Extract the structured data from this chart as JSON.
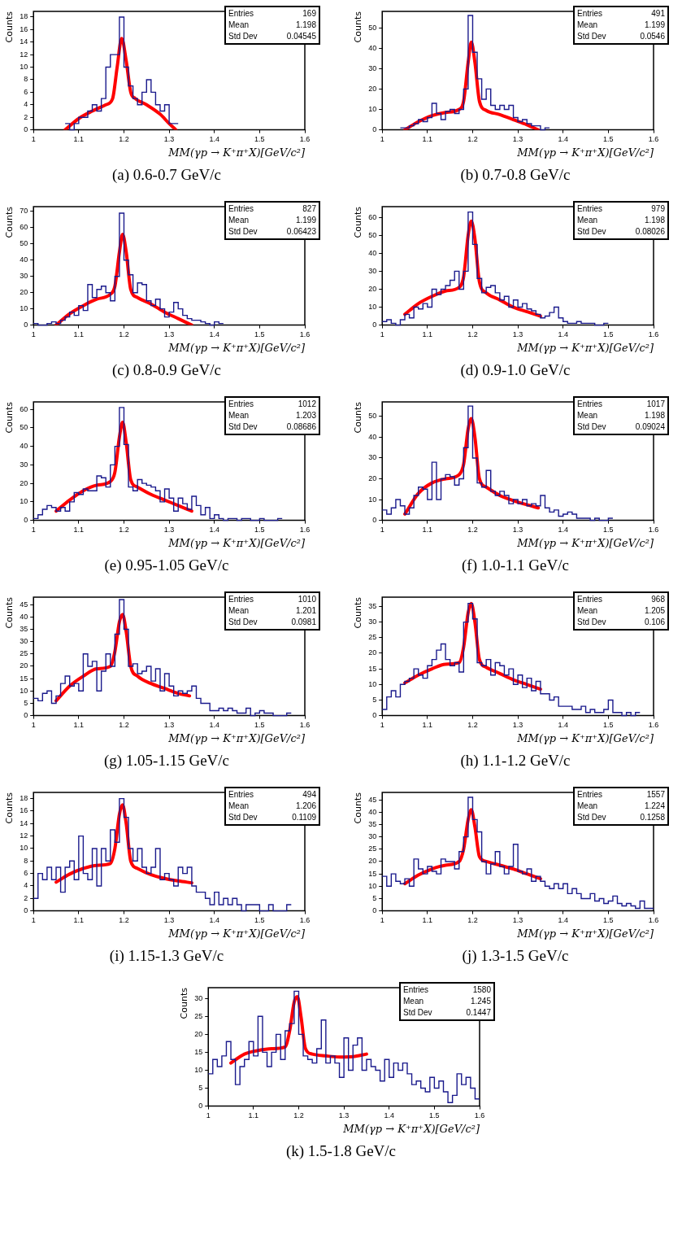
{
  "chart_data": [
    {
      "type": "histogram",
      "title": "(a) 0.6-0.7 GeV/c",
      "xlabel": "MM(γp → K⁺π⁺X)[GeV/c²]",
      "ylabel": "Counts",
      "annotations": [
        "Entries 169",
        "Mean 1.198",
        "Std Dev 0.04545"
      ],
      "xlim": [
        1,
        1.6
      ],
      "xticks": [
        1,
        1.1,
        1.2,
        1.3,
        1.4,
        1.5,
        1.6
      ],
      "ylim": [
        0,
        18.9
      ],
      "yticks": [
        0,
        2,
        4,
        6,
        8,
        10,
        12,
        14,
        16,
        18
      ],
      "color": "#1a1a8c",
      "bins": [
        1.07,
        1.08,
        1.09,
        1.1,
        1.11,
        1.12,
        1.13,
        1.14,
        1.15,
        1.16,
        1.17,
        1.18,
        1.19,
        1.2,
        1.21,
        1.22,
        1.23,
        1.24,
        1.25,
        1.26,
        1.27,
        1.28,
        1.29,
        1.3,
        1.31,
        1.32
      ],
      "values": [
        1,
        0,
        1,
        2,
        2,
        3,
        4,
        3,
        5,
        10,
        12,
        12,
        18,
        10,
        7,
        5,
        4,
        6,
        8,
        6,
        4,
        3,
        4,
        1,
        1
      ],
      "series": [
        {
          "type": "line",
          "color": "#ff0000",
          "x": [
            1.07,
            1.1,
            1.13,
            1.16,
            1.175,
            1.185,
            1.195,
            1.205,
            1.215,
            1.225,
            1.25,
            1.28,
            1.3,
            1.315
          ],
          "values": [
            0,
            1.8,
            3,
            4,
            5,
            10,
            14.6,
            11,
            6,
            5,
            4,
            2.5,
            1,
            0
          ]
        }
      ]
    },
    {
      "type": "histogram",
      "title": "(b) 0.7-0.8 GeV/c",
      "xlabel": "MM(γp → K⁺π⁺X)[GeV/c²]",
      "ylabel": "Counts",
      "annotations": [
        "Entries 491",
        "Mean 1.199",
        "Std Dev 0.0546"
      ],
      "xlim": [
        1,
        1.6
      ],
      "xticks": [
        1,
        1.1,
        1.2,
        1.3,
        1.4,
        1.5,
        1.6
      ],
      "ylim": [
        0,
        58
      ],
      "yticks": [
        0,
        10,
        20,
        30,
        40,
        50
      ],
      "color": "#1a1a8c",
      "bins": [
        1.04,
        1.05,
        1.06,
        1.07,
        1.08,
        1.09,
        1.1,
        1.11,
        1.12,
        1.13,
        1.14,
        1.15,
        1.16,
        1.17,
        1.18,
        1.19,
        1.2,
        1.21,
        1.22,
        1.23,
        1.24,
        1.25,
        1.26,
        1.27,
        1.28,
        1.29,
        1.3,
        1.31,
        1.32,
        1.33,
        1.34,
        1.35,
        1.36,
        1.37
      ],
      "values": [
        1,
        1,
        2,
        3,
        5,
        4,
        6,
        13,
        8,
        5,
        9,
        10,
        8,
        10,
        20,
        56,
        38,
        25,
        15,
        20,
        12,
        10,
        12,
        10,
        12,
        6,
        4,
        5,
        3,
        2,
        2,
        0,
        1
      ],
      "series": [
        {
          "type": "line",
          "color": "#ff0000",
          "x": [
            1.05,
            1.08,
            1.11,
            1.14,
            1.17,
            1.18,
            1.19,
            1.197,
            1.205,
            1.215,
            1.23,
            1.26,
            1.29,
            1.32,
            1.345
          ],
          "values": [
            0,
            4,
            7,
            8.5,
            10,
            14,
            33,
            43,
            33,
            14,
            9.5,
            7.5,
            5,
            2.5,
            0
          ]
        }
      ]
    },
    {
      "type": "histogram",
      "title": "(c) 0.8-0.9 GeV/c",
      "xlabel": "MM(γp → K⁺π⁺X)[GeV/c²]",
      "ylabel": "Counts",
      "annotations": [
        "Entries 827",
        "Mean 1.199",
        "Std Dev 0.06423"
      ],
      "xlim": [
        1,
        1.6
      ],
      "xticks": [
        1,
        1.1,
        1.2,
        1.3,
        1.4,
        1.5,
        1.6
      ],
      "ylim": [
        0,
        73
      ],
      "yticks": [
        0,
        10,
        20,
        30,
        40,
        50,
        60,
        70
      ],
      "color": "#1a1a8c",
      "bins": [
        1,
        1.01,
        1.02,
        1.03,
        1.04,
        1.05,
        1.06,
        1.07,
        1.08,
        1.09,
        1.1,
        1.11,
        1.12,
        1.13,
        1.14,
        1.15,
        1.16,
        1.17,
        1.18,
        1.19,
        1.2,
        1.21,
        1.22,
        1.23,
        1.24,
        1.25,
        1.26,
        1.27,
        1.28,
        1.29,
        1.3,
        1.31,
        1.32,
        1.33,
        1.34,
        1.35,
        1.36,
        1.37,
        1.38,
        1.39,
        1.4,
        1.41,
        1.42
      ],
      "values": [
        1,
        0,
        0,
        1,
        2,
        1,
        3,
        5,
        8,
        6,
        12,
        9,
        25,
        17,
        22,
        24,
        20,
        15,
        30,
        69,
        40,
        31,
        20,
        26,
        25,
        15,
        12,
        16,
        10,
        5,
        8,
        14,
        10,
        6,
        4,
        3,
        3,
        2,
        1,
        0,
        2,
        1
      ],
      "series": [
        {
          "type": "line",
          "color": "#ff0000",
          "x": [
            1.05,
            1.08,
            1.11,
            1.14,
            1.17,
            1.18,
            1.19,
            1.197,
            1.205,
            1.215,
            1.23,
            1.26,
            1.29,
            1.32,
            1.35
          ],
          "values": [
            0,
            7,
            12,
            16,
            19,
            24,
            45,
            56,
            45,
            22,
            17,
            13,
            8,
            4,
            0
          ]
        }
      ]
    },
    {
      "type": "histogram",
      "title": "(d) 0.9-1.0 GeV/c",
      "xlabel": "MM(γp → K⁺π⁺X)[GeV/c²]",
      "ylabel": "Counts",
      "annotations": [
        "Entries 979",
        "Mean 1.198",
        "Std Dev 0.08026"
      ],
      "xlim": [
        1,
        1.6
      ],
      "xticks": [
        1,
        1.1,
        1.2,
        1.3,
        1.4,
        1.5,
        1.6
      ],
      "ylim": [
        0,
        66
      ],
      "yticks": [
        0,
        10,
        20,
        30,
        40,
        50,
        60
      ],
      "color": "#1a1a8c",
      "bins": [
        1,
        1.01,
        1.02,
        1.03,
        1.04,
        1.05,
        1.06,
        1.07,
        1.08,
        1.09,
        1.1,
        1.11,
        1.12,
        1.13,
        1.14,
        1.15,
        1.16,
        1.17,
        1.18,
        1.19,
        1.2,
        1.21,
        1.22,
        1.23,
        1.24,
        1.25,
        1.26,
        1.27,
        1.28,
        1.29,
        1.3,
        1.31,
        1.32,
        1.33,
        1.34,
        1.35,
        1.36,
        1.37,
        1.38,
        1.39,
        1.4,
        1.41,
        1.42,
        1.43,
        1.44,
        1.45,
        1.46,
        1.47,
        1.48,
        1.49,
        1.5
      ],
      "values": [
        2,
        3,
        1,
        0,
        3,
        6,
        4,
        10,
        9,
        12,
        10,
        20,
        17,
        20,
        22,
        25,
        30,
        20,
        30,
        63,
        45,
        26,
        18,
        21,
        22,
        18,
        14,
        16,
        10,
        14,
        10,
        12,
        9,
        8,
        6,
        4,
        5,
        7,
        10,
        4,
        2,
        1,
        1,
        2,
        1,
        1,
        1,
        0,
        0,
        1
      ],
      "series": [
        {
          "type": "line",
          "color": "#ff0000",
          "x": [
            1.05,
            1.08,
            1.11,
            1.14,
            1.17,
            1.18,
            1.19,
            1.197,
            1.205,
            1.215,
            1.23,
            1.26,
            1.29,
            1.32,
            1.35
          ],
          "values": [
            6,
            12,
            16,
            19,
            21,
            27,
            50,
            58,
            48,
            24,
            18,
            14,
            10,
            7.5,
            5
          ]
        }
      ]
    },
    {
      "type": "histogram",
      "title": "(e) 0.95-1.05 GeV/c",
      "xlabel": "MM(γp → K⁺π⁺X)[GeV/c²]",
      "ylabel": "Counts",
      "annotations": [
        "Entries 1012",
        "Mean 1.203",
        "Std Dev 0.08686"
      ],
      "xlim": [
        1,
        1.6
      ],
      "xticks": [
        1,
        1.1,
        1.2,
        1.3,
        1.4,
        1.5,
        1.6
      ],
      "ylim": [
        0,
        64
      ],
      "yticks": [
        0,
        10,
        20,
        30,
        40,
        50,
        60
      ],
      "color": "#1a1a8c",
      "bins": [
        1,
        1.01,
        1.02,
        1.03,
        1.04,
        1.05,
        1.06,
        1.07,
        1.08,
        1.09,
        1.1,
        1.11,
        1.12,
        1.13,
        1.14,
        1.15,
        1.16,
        1.17,
        1.18,
        1.19,
        1.2,
        1.21,
        1.22,
        1.23,
        1.24,
        1.25,
        1.26,
        1.27,
        1.28,
        1.29,
        1.3,
        1.31,
        1.32,
        1.33,
        1.34,
        1.35,
        1.36,
        1.37,
        1.38,
        1.39,
        1.4,
        1.41,
        1.42,
        1.43,
        1.44,
        1.45,
        1.46,
        1.47,
        1.48,
        1.49,
        1.5,
        1.51,
        1.52,
        1.53,
        1.54,
        1.55
      ],
      "values": [
        1,
        3,
        6,
        8,
        7,
        5,
        7,
        5,
        10,
        15,
        14,
        17,
        16,
        16,
        24,
        23,
        18,
        30,
        40,
        61,
        41,
        18,
        16,
        22,
        20,
        19,
        18,
        16,
        10,
        17,
        12,
        5,
        12,
        9,
        6,
        13,
        8,
        3,
        7,
        1,
        3,
        1,
        0,
        1,
        1,
        0,
        1,
        1,
        0,
        0,
        1,
        0,
        0,
        0,
        1
      ],
      "series": [
        {
          "type": "line",
          "color": "#ff0000",
          "x": [
            1.05,
            1.08,
            1.11,
            1.14,
            1.17,
            1.18,
            1.19,
            1.197,
            1.205,
            1.215,
            1.23,
            1.26,
            1.29,
            1.32,
            1.35
          ],
          "values": [
            5,
            11,
            16,
            19,
            21,
            26,
            45,
            53,
            42,
            22,
            18,
            14,
            11,
            8,
            5
          ]
        }
      ]
    },
    {
      "type": "histogram",
      "title": "(f) 1.0-1.1 GeV/c",
      "xlabel": "MM(γp → K⁺π⁺X)[GeV/c²]",
      "ylabel": "Counts",
      "annotations": [
        "Entries 1017",
        "Mean 1.198",
        "Std Dev 0.09024"
      ],
      "xlim": [
        1,
        1.6
      ],
      "xticks": [
        1,
        1.1,
        1.2,
        1.3,
        1.4,
        1.5,
        1.6
      ],
      "ylim": [
        0,
        57
      ],
      "yticks": [
        0,
        10,
        20,
        30,
        40,
        50
      ],
      "color": "#1a1a8c",
      "bins": [
        1,
        1.01,
        1.02,
        1.03,
        1.04,
        1.05,
        1.06,
        1.07,
        1.08,
        1.09,
        1.1,
        1.11,
        1.12,
        1.13,
        1.14,
        1.15,
        1.16,
        1.17,
        1.18,
        1.19,
        1.2,
        1.21,
        1.22,
        1.23,
        1.24,
        1.25,
        1.26,
        1.27,
        1.28,
        1.29,
        1.3,
        1.31,
        1.32,
        1.33,
        1.34,
        1.35,
        1.36,
        1.37,
        1.38,
        1.39,
        1.4,
        1.41,
        1.42,
        1.43,
        1.44,
        1.45,
        1.46,
        1.47,
        1.48,
        1.49,
        1.5,
        1.51
      ],
      "values": [
        5,
        3,
        6,
        10,
        7,
        3,
        6,
        12,
        16,
        15,
        10,
        28,
        10,
        20,
        22,
        21,
        17,
        20,
        35,
        55,
        30,
        18,
        16,
        24,
        14,
        12,
        14,
        12,
        8,
        10,
        8,
        10,
        7,
        8,
        7,
        12,
        6,
        4,
        5,
        2,
        3,
        4,
        3,
        1,
        1,
        1,
        0,
        1,
        0,
        0,
        1
      ],
      "series": [
        {
          "type": "line",
          "color": "#ff0000",
          "x": [
            1.05,
            1.08,
            1.11,
            1.14,
            1.17,
            1.18,
            1.19,
            1.197,
            1.205,
            1.215,
            1.23,
            1.26,
            1.29,
            1.32,
            1.345
          ],
          "values": [
            3,
            13,
            18,
            20,
            22,
            27,
            44,
            49,
            40,
            20,
            16,
            12,
            9.5,
            7.5,
            6
          ]
        }
      ]
    },
    {
      "type": "histogram",
      "title": "(g) 1.05-1.15 GeV/c",
      "xlabel": "MM(γp → K⁺π⁺X)[GeV/c²]",
      "ylabel": "Counts",
      "annotations": [
        "Entries 1010",
        "Mean 1.201",
        "Std Dev 0.0981"
      ],
      "xlim": [
        1,
        1.6
      ],
      "xticks": [
        1,
        1.1,
        1.2,
        1.3,
        1.4,
        1.5,
        1.6
      ],
      "ylim": [
        0,
        48
      ],
      "yticks": [
        0,
        5,
        10,
        15,
        20,
        25,
        30,
        35,
        40,
        45
      ],
      "color": "#1a1a8c",
      "bins": [
        1,
        1.01,
        1.02,
        1.03,
        1.04,
        1.05,
        1.06,
        1.07,
        1.08,
        1.09,
        1.1,
        1.11,
        1.12,
        1.13,
        1.14,
        1.15,
        1.16,
        1.17,
        1.18,
        1.19,
        1.2,
        1.21,
        1.22,
        1.23,
        1.24,
        1.25,
        1.26,
        1.27,
        1.28,
        1.29,
        1.3,
        1.31,
        1.32,
        1.33,
        1.34,
        1.35,
        1.36,
        1.37,
        1.38,
        1.39,
        1.4,
        1.41,
        1.42,
        1.43,
        1.44,
        1.45,
        1.46,
        1.47,
        1.48,
        1.49,
        1.5,
        1.51,
        1.52,
        1.53,
        1.54,
        1.55,
        1.56,
        1.57
      ],
      "values": [
        7,
        6,
        9,
        10,
        5,
        8,
        13,
        16,
        12,
        13,
        10,
        25,
        20,
        22,
        10,
        18,
        25,
        20,
        33,
        47,
        35,
        20,
        21,
        17,
        18,
        20,
        14,
        19,
        10,
        17,
        12,
        8,
        10,
        9,
        10,
        12,
        7,
        5,
        5,
        2,
        2,
        3,
        2,
        3,
        2,
        1,
        1,
        3,
        0,
        1,
        2,
        1,
        1,
        0,
        0,
        0,
        1
      ],
      "series": [
        {
          "type": "line",
          "color": "#ff0000",
          "x": [
            1.05,
            1.08,
            1.11,
            1.14,
            1.17,
            1.18,
            1.19,
            1.197,
            1.205,
            1.215,
            1.23,
            1.26,
            1.29,
            1.32,
            1.345
          ],
          "values": [
            6,
            12,
            16,
            19,
            20,
            26,
            38,
            41,
            34,
            20,
            16,
            13,
            11,
            9,
            8
          ]
        }
      ]
    },
    {
      "type": "histogram",
      "title": "(h) 1.1-1.2 GeV/c",
      "xlabel": "MM(γp → K⁺π⁺X)[GeV/c²]",
      "ylabel": "Counts",
      "annotations": [
        "Entries 968",
        "Mean 1.205",
        "Std Dev 0.106"
      ],
      "xlim": [
        1,
        1.6
      ],
      "xticks": [
        1,
        1.1,
        1.2,
        1.3,
        1.4,
        1.5,
        1.6
      ],
      "ylim": [
        0,
        38
      ],
      "yticks": [
        0,
        5,
        10,
        15,
        20,
        25,
        30,
        35
      ],
      "color": "#1a1a8c",
      "bins": [
        1,
        1.01,
        1.02,
        1.03,
        1.04,
        1.05,
        1.06,
        1.07,
        1.08,
        1.09,
        1.1,
        1.11,
        1.12,
        1.13,
        1.14,
        1.15,
        1.16,
        1.17,
        1.18,
        1.19,
        1.2,
        1.21,
        1.22,
        1.23,
        1.24,
        1.25,
        1.26,
        1.27,
        1.28,
        1.29,
        1.3,
        1.31,
        1.32,
        1.33,
        1.34,
        1.35,
        1.36,
        1.37,
        1.38,
        1.39,
        1.4,
        1.41,
        1.42,
        1.43,
        1.44,
        1.45,
        1.46,
        1.47,
        1.48,
        1.49,
        1.5,
        1.51,
        1.52,
        1.53,
        1.54,
        1.55,
        1.56,
        1.57
      ],
      "values": [
        2,
        6,
        8,
        6,
        10,
        11,
        12,
        15,
        13,
        12,
        16,
        18,
        21,
        23,
        18,
        16,
        17,
        14,
        30,
        36,
        31,
        17,
        16,
        18,
        13,
        17,
        16,
        13,
        15,
        10,
        13,
        9,
        12,
        8,
        11,
        7,
        7,
        5,
        6,
        3,
        3,
        3,
        2,
        2,
        3,
        1,
        2,
        1,
        1,
        2,
        5,
        1,
        1,
        0,
        1,
        0,
        1
      ],
      "series": [
        {
          "type": "line",
          "color": "#ff0000",
          "x": [
            1.05,
            1.08,
            1.11,
            1.14,
            1.17,
            1.18,
            1.19,
            1.197,
            1.205,
            1.215,
            1.23,
            1.26,
            1.29,
            1.32,
            1.35
          ],
          "values": [
            10.5,
            13,
            15,
            16.5,
            17,
            22,
            33,
            36,
            30,
            18,
            15.5,
            13.5,
            11.5,
            10,
            8.5
          ]
        }
      ]
    },
    {
      "type": "histogram",
      "title": "(i) 1.15-1.3 GeV/c",
      "xlabel": "MM(γp → K⁺π⁺X)[GeV/c²]",
      "ylabel": "Counts",
      "annotations": [
        "Entries 494",
        "Mean 1.206",
        "Std Dev 0.1109"
      ],
      "xlim": [
        1,
        1.6
      ],
      "xticks": [
        1,
        1.1,
        1.2,
        1.3,
        1.4,
        1.5,
        1.6
      ],
      "ylim": [
        0,
        19
      ],
      "yticks": [
        0,
        2,
        4,
        6,
        8,
        10,
        12,
        14,
        16,
        18
      ],
      "color": "#1a1a8c",
      "bins": [
        1,
        1.01,
        1.02,
        1.03,
        1.04,
        1.05,
        1.06,
        1.07,
        1.08,
        1.09,
        1.1,
        1.11,
        1.12,
        1.13,
        1.14,
        1.15,
        1.16,
        1.17,
        1.18,
        1.19,
        1.2,
        1.21,
        1.22,
        1.23,
        1.24,
        1.25,
        1.26,
        1.27,
        1.28,
        1.29,
        1.3,
        1.31,
        1.32,
        1.33,
        1.34,
        1.35,
        1.36,
        1.37,
        1.38,
        1.39,
        1.4,
        1.41,
        1.42,
        1.43,
        1.44,
        1.45,
        1.46,
        1.47,
        1.48,
        1.49,
        1.5,
        1.51,
        1.52,
        1.53,
        1.54,
        1.55,
        1.56,
        1.57
      ],
      "values": [
        2,
        6,
        5,
        7,
        5,
        7,
        3,
        7,
        8,
        5,
        12,
        6,
        5,
        10,
        4,
        10,
        8,
        13,
        11,
        18,
        15,
        10,
        8,
        10,
        7,
        6,
        7,
        10,
        5,
        6,
        5,
        4,
        7,
        6,
        7,
        4,
        3,
        3,
        2,
        1,
        3,
        1,
        2,
        1,
        2,
        1,
        0,
        1,
        1,
        1,
        0,
        0,
        1,
        0,
        0,
        0,
        1
      ],
      "series": [
        {
          "type": "line",
          "color": "#ff0000",
          "x": [
            1.05,
            1.08,
            1.11,
            1.14,
            1.17,
            1.18,
            1.19,
            1.197,
            1.205,
            1.215,
            1.23,
            1.26,
            1.29,
            1.32,
            1.35
          ],
          "values": [
            4.6,
            5.9,
            6.8,
            7.3,
            7.6,
            10,
            15.5,
            17,
            14,
            8,
            6.8,
            5.8,
            5.2,
            4.8,
            4.5
          ]
        }
      ]
    },
    {
      "type": "histogram",
      "title": "(j) 1.3-1.5 GeV/c",
      "xlabel": "MM(γp → K⁺π⁺X)[GeV/c²]",
      "ylabel": "Counts",
      "annotations": [
        "Entries 1557",
        "Mean 1.224",
        "Std Dev 0.1258"
      ],
      "xlim": [
        1,
        1.6
      ],
      "xticks": [
        1,
        1.1,
        1.2,
        1.3,
        1.4,
        1.5,
        1.6
      ],
      "ylim": [
        0,
        48
      ],
      "yticks": [
        0,
        5,
        10,
        15,
        20,
        25,
        30,
        35,
        40,
        45
      ],
      "color": "#1a1a8c",
      "bins": [
        1,
        1.01,
        1.02,
        1.03,
        1.04,
        1.05,
        1.06,
        1.07,
        1.08,
        1.09,
        1.1,
        1.11,
        1.12,
        1.13,
        1.14,
        1.15,
        1.16,
        1.17,
        1.18,
        1.19,
        1.2,
        1.21,
        1.22,
        1.23,
        1.24,
        1.25,
        1.26,
        1.27,
        1.28,
        1.29,
        1.3,
        1.31,
        1.32,
        1.33,
        1.34,
        1.35,
        1.36,
        1.37,
        1.38,
        1.39,
        1.4,
        1.41,
        1.42,
        1.43,
        1.44,
        1.45,
        1.46,
        1.47,
        1.48,
        1.49,
        1.5,
        1.51,
        1.52,
        1.53,
        1.54,
        1.55,
        1.56,
        1.57,
        1.58,
        1.59,
        1.6
      ],
      "values": [
        14,
        10,
        15,
        12,
        11,
        13,
        10,
        21,
        17,
        15,
        18,
        16,
        15,
        21,
        20,
        20,
        17,
        24,
        30,
        46,
        37,
        32,
        20,
        15,
        19,
        24,
        18,
        15,
        18,
        27,
        16,
        15,
        17,
        12,
        14,
        12,
        10,
        9,
        11,
        9,
        11,
        7,
        9,
        7,
        5,
        5,
        7,
        4,
        5,
        3,
        4,
        6,
        3,
        2,
        3,
        2,
        1,
        4,
        1,
        1
      ],
      "series": [
        {
          "type": "line",
          "color": "#ff0000",
          "x": [
            1.05,
            1.08,
            1.11,
            1.14,
            1.17,
            1.18,
            1.19,
            1.197,
            1.205,
            1.215,
            1.23,
            1.26,
            1.29,
            1.32,
            1.35
          ],
          "values": [
            11,
            14.5,
            17,
            18.5,
            20,
            25,
            37,
            41,
            34,
            22,
            20,
            18.5,
            17,
            15,
            13
          ]
        }
      ]
    },
    {
      "type": "histogram",
      "title": "(k) 1.5-1.8 GeV/c",
      "xlabel": "MM(γp → K⁺π⁺X)[GeV/c²]",
      "ylabel": "Counts",
      "annotations": [
        "Entries 1580",
        "Mean 1.245",
        "Std Dev 0.1447"
      ],
      "xlim": [
        1,
        1.6
      ],
      "xticks": [
        1,
        1.1,
        1.2,
        1.3,
        1.4,
        1.5,
        1.6
      ],
      "ylim": [
        0,
        33
      ],
      "yticks": [
        0,
        5,
        10,
        15,
        20,
        25,
        30
      ],
      "color": "#1a1a8c",
      "bins": [
        1,
        1.01,
        1.02,
        1.03,
        1.04,
        1.05,
        1.06,
        1.07,
        1.08,
        1.09,
        1.1,
        1.11,
        1.12,
        1.13,
        1.14,
        1.15,
        1.16,
        1.17,
        1.18,
        1.19,
        1.2,
        1.21,
        1.22,
        1.23,
        1.24,
        1.25,
        1.26,
        1.27,
        1.28,
        1.29,
        1.3,
        1.31,
        1.32,
        1.33,
        1.34,
        1.35,
        1.36,
        1.37,
        1.38,
        1.39,
        1.4,
        1.41,
        1.42,
        1.43,
        1.44,
        1.45,
        1.46,
        1.47,
        1.48,
        1.49,
        1.5,
        1.51,
        1.52,
        1.53,
        1.54,
        1.55,
        1.56,
        1.57,
        1.58,
        1.59,
        1.6
      ],
      "values": [
        9,
        13,
        11,
        14,
        18,
        13,
        6,
        11,
        13,
        18,
        14,
        25,
        15,
        11,
        15,
        20,
        13,
        21,
        23,
        32,
        20,
        14,
        13,
        12,
        16,
        24,
        12,
        14,
        12,
        8,
        19,
        10,
        17,
        19,
        10,
        13,
        11,
        10,
        7,
        13,
        8,
        12,
        10,
        12,
        9,
        6,
        7,
        5,
        4,
        8,
        5,
        7,
        4,
        1,
        3,
        9,
        6,
        8,
        5,
        2
      ],
      "series": [
        {
          "type": "line",
          "color": "#ff0000",
          "x": [
            1.05,
            1.08,
            1.11,
            1.14,
            1.17,
            1.18,
            1.19,
            1.197,
            1.205,
            1.215,
            1.23,
            1.26,
            1.29,
            1.32,
            1.35
          ],
          "values": [
            12,
            14.5,
            15.5,
            16,
            16.5,
            21,
            29,
            30.5,
            25,
            16,
            14.5,
            14,
            13.7,
            13.8,
            14.5
          ]
        }
      ]
    }
  ]
}
